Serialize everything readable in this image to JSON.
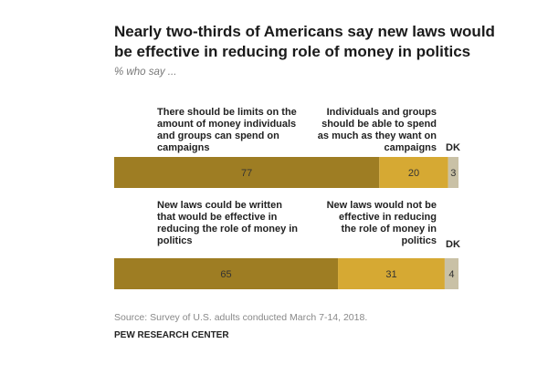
{
  "title": "Nearly two-thirds of Americans say new laws would be effective in reducing role of money in politics",
  "subtitle": "% who say ...",
  "chart_data": {
    "type": "bar",
    "orientation": "horizontal",
    "stacked": true,
    "xlim": [
      0,
      100
    ],
    "colors": [
      "#9e7d23",
      "#d6a933",
      "#c9c1a6"
    ],
    "rows": [
      {
        "left_label": "There should be limits on the amount of money individuals and groups can spend on campaigns",
        "right_label": "Individuals and groups should be able to spend as much as they want on campaigns",
        "dk_label": "DK",
        "values": [
          77,
          20,
          3
        ]
      },
      {
        "left_label": "New laws could be written that would be effective in reducing the role of money in politics",
        "right_label": "New laws would not be effective in reducing the role of money in politics",
        "dk_label": "DK",
        "values": [
          65,
          31,
          4
        ]
      }
    ]
  },
  "footer": {
    "source": "Source: Survey of U.S. adults conducted March 7-14, 2018.",
    "org": "PEW RESEARCH CENTER"
  }
}
